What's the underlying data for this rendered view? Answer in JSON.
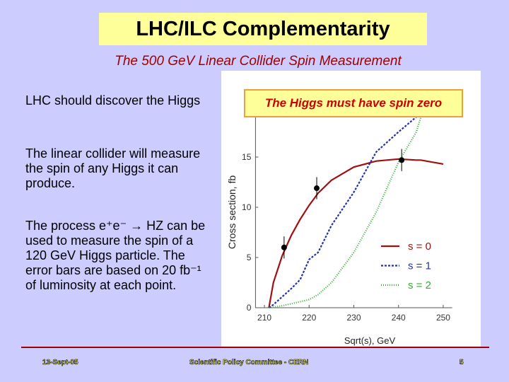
{
  "header": {
    "title": "LHC/ILC Complementarity",
    "subtitle": "The 500 GeV Linear Collider Spin Measurement"
  },
  "body": {
    "paragraphs": [
      "LHC should discover the Higgs",
      "The linear collider will measure the spin of any Higgs it can produce.",
      "The process e⁺e⁻ → HZ can be used to measure the spin of a 120 GeV Higgs particle. The error bars are based on 20 fb⁻¹ of luminosity at each point."
    ]
  },
  "callout": "The Higgs must have spin zero",
  "footer": {
    "date": "13-Sept-05",
    "event": "Scientific Policy Committee - CERN",
    "page": "5"
  },
  "chart_data": {
    "type": "line",
    "xlabel": "Sqrt(s),  GeV",
    "ylabel": "Cross section,  fb",
    "x": [
      211,
      212,
      214,
      216,
      218,
      220,
      222,
      225,
      230,
      235,
      240,
      244,
      245,
      250
    ],
    "series": [
      {
        "name": "s = 0",
        "color": "#a01010",
        "dash": "",
        "values": [
          0,
          2.5,
          5.2,
          7.2,
          8.8,
          10.2,
          11.4,
          12.7,
          14.0,
          14.6,
          14.8,
          14.7,
          14.7,
          14.3
        ]
      },
      {
        "name": "s = 1",
        "color": "#2233aa",
        "dash": "3,2",
        "values": [
          0,
          0.3,
          1.1,
          1.9,
          2.8,
          4.8,
          5.5,
          8.2,
          11.5,
          15.5,
          17.5,
          19,
          null,
          null
        ]
      },
      {
        "name": "s = 2",
        "color": "#33aa33",
        "dash": "1,2",
        "values": [
          0,
          0.05,
          0.2,
          0.4,
          0.6,
          0.8,
          1.3,
          2.5,
          5.5,
          9.5,
          14.5,
          17.5,
          19,
          null
        ]
      }
    ],
    "measurements": {
      "x": [
        214.4,
        221.7,
        240.7
      ],
      "values": [
        6.0,
        11.9,
        14.7
      ],
      "errors": [
        1.1,
        1.1,
        1.1
      ]
    },
    "xlim": [
      208,
      252
    ],
    "ylim": [
      0,
      19
    ],
    "xticks": [
      210,
      220,
      230,
      240,
      250
    ],
    "yticks": [
      0,
      5,
      10,
      15
    ]
  }
}
